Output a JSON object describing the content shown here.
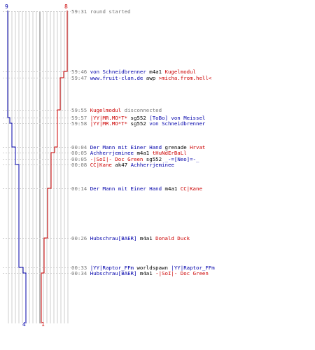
{
  "scores": {
    "blue_top": "9",
    "red_top": "8",
    "blue_bottom": "4",
    "red_bottom": "1"
  },
  "colors": {
    "blue_team": "#0000aa",
    "red_team": "#cc0000",
    "timestamp": "#777777",
    "grid": "#cccccc"
  },
  "events": [
    {
      "time": "59:31",
      "parts": [
        {
          "text": "round started",
          "c": "gray"
        }
      ]
    },
    {
      "time": "59:46",
      "parts": [
        {
          "text": "von Schneidbrenner",
          "c": "blue"
        },
        {
          "text": " m4a1 ",
          "c": "dark"
        },
        {
          "text": "Kugelmodul",
          "c": "red"
        }
      ]
    },
    {
      "time": "59:47",
      "parts": [
        {
          "text": "www.fruit-clan.de",
          "c": "blue"
        },
        {
          "text": " awp ",
          "c": "dark"
        },
        {
          "text": ">micha.from.hell<",
          "c": "red"
        }
      ]
    },
    {
      "time": "59:55",
      "parts": [
        {
          "text": "Kugelmodul",
          "c": "red"
        },
        {
          "text": " disconnected",
          "c": "gray"
        }
      ]
    },
    {
      "time": "59:57",
      "parts": [
        {
          "text": "|YY|MR.MO*T*",
          "c": "red"
        },
        {
          "text": " sg552 ",
          "c": "dark"
        },
        {
          "text": "[ToBo] von Meissel",
          "c": "blue"
        }
      ]
    },
    {
      "time": "59:58",
      "parts": [
        {
          "text": "|YY|MR.MO*T*",
          "c": "red"
        },
        {
          "text": " sg552 ",
          "c": "dark"
        },
        {
          "text": "von Schneidbrenner",
          "c": "blue"
        }
      ]
    },
    {
      "time": "00:04",
      "parts": [
        {
          "text": "Der Mann mit Einer Hand",
          "c": "blue"
        },
        {
          "text": " grenade ",
          "c": "dark"
        },
        {
          "text": "Hrvat",
          "c": "red"
        }
      ]
    },
    {
      "time": "00:05",
      "parts": [
        {
          "text": "Achherrjeminee",
          "c": "blue"
        },
        {
          "text": " m4a1 ",
          "c": "dark"
        },
        {
          "text": "tHuNdErBaLl",
          "c": "red"
        }
      ]
    },
    {
      "time": "00:05",
      "parts": [
        {
          "text": "-|SoI|- Doc Green",
          "c": "red"
        },
        {
          "text": " sg552 ",
          "c": "dark"
        },
        {
          "text": "_-=[Neo]=-_",
          "c": "blue"
        }
      ]
    },
    {
      "time": "00:08",
      "parts": [
        {
          "text": "CC|Kane",
          "c": "red"
        },
        {
          "text": " ak47 ",
          "c": "dark"
        },
        {
          "text": "Achherrjeminee",
          "c": "blue"
        }
      ]
    },
    {
      "time": "00:14",
      "parts": [
        {
          "text": "Der Mann mit Einer Hand",
          "c": "blue"
        },
        {
          "text": " m4a1 ",
          "c": "dark"
        },
        {
          "text": "CC|Kane",
          "c": "red"
        }
      ]
    },
    {
      "time": "00:26",
      "parts": [
        {
          "text": "Hubschrau[BAER]",
          "c": "blue"
        },
        {
          "text": " m4a1 ",
          "c": "dark"
        },
        {
          "text": "Donald Duck",
          "c": "red"
        }
      ]
    },
    {
      "time": "00:33",
      "parts": [
        {
          "text": "|YY|Raptor_FFm",
          "c": "blue"
        },
        {
          "text": " worldspawn ",
          "c": "dark"
        },
        {
          "text": "|YY|Raptor_FFm",
          "c": "blue"
        }
      ]
    },
    {
      "time": "00:34",
      "parts": [
        {
          "text": "Hubschrau[BAER]",
          "c": "blue"
        },
        {
          "text": " m4a1 ",
          "c": "dark"
        },
        {
          "text": "-|SoI|- Doc Green",
          "c": "red"
        }
      ]
    }
  ]
}
